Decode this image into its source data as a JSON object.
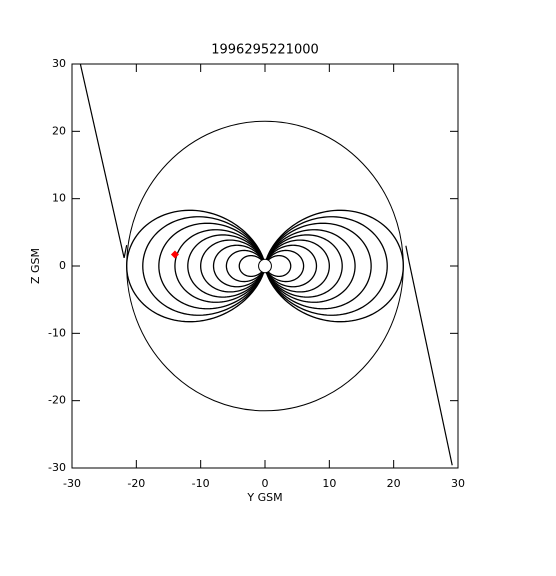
{
  "chart_data": {
    "type": "fieldlines",
    "title": "1996295221000",
    "xlabel": "Y GSM",
    "ylabel": "Z GSM",
    "xlim": [
      -30,
      30
    ],
    "ylim": [
      -30,
      30
    ],
    "xticks": [
      -30,
      -20,
      -10,
      0,
      10,
      20,
      30
    ],
    "yticks": [
      -30,
      -20,
      -10,
      0,
      10,
      20,
      30
    ],
    "color": "#000000",
    "boundary_radius": 21.5,
    "earth_radius": 1,
    "field_line_L": [
      4,
      6,
      8,
      10,
      12,
      14,
      16.5,
      19,
      21.5
    ],
    "segments": [
      {
        "x": [
          -28.7,
          -21.9,
          -21.5
        ],
        "y": [
          30,
          1.2,
          3.1
        ]
      },
      {
        "x": [
          21.9,
          22.4,
          29.1
        ],
        "y": [
          3,
          0.6,
          -29.6
        ]
      }
    ],
    "spacecraft": {
      "x": -14,
      "y": 1.7,
      "color": "#ff0000"
    }
  }
}
